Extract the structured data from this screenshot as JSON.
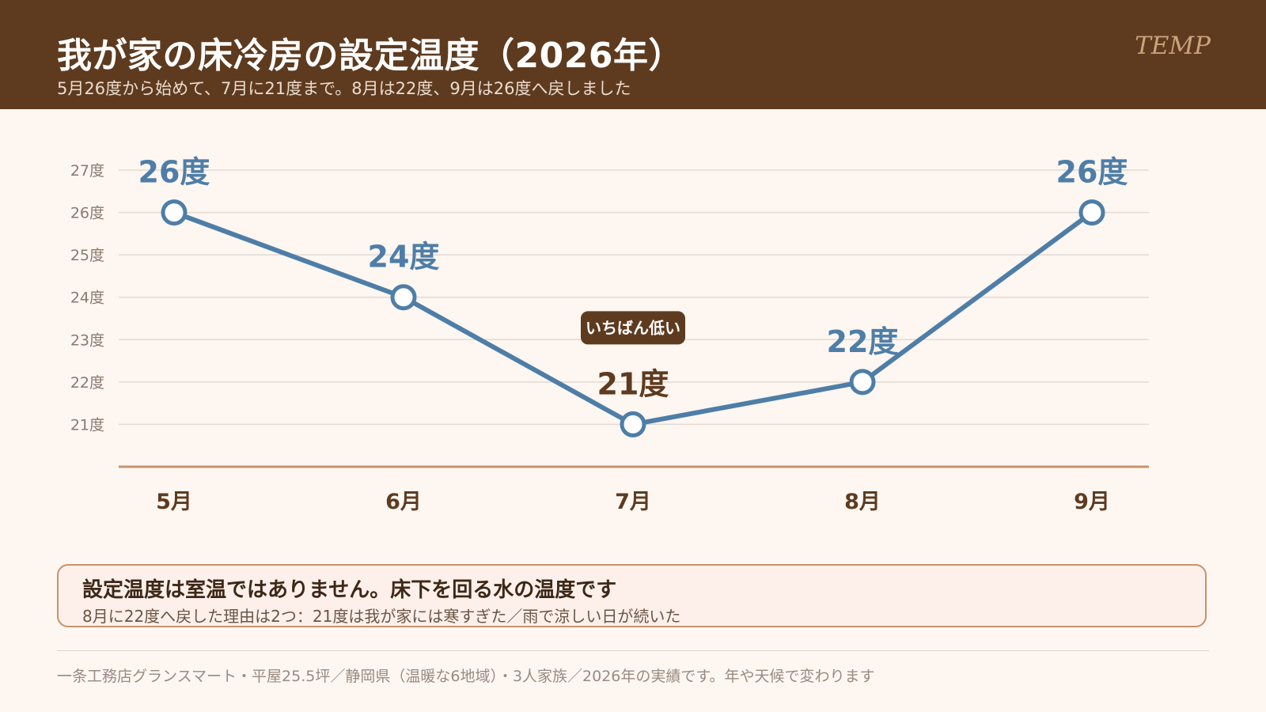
{
  "header": {
    "title": "我が家の床冷房の設定温度（2026年）",
    "subtitle": "5月26度から始めて、7月に21度まで。8月は22度、9月は26度へ戻しました",
    "brand": "TEMP"
  },
  "chart_data": {
    "type": "line",
    "categories": [
      "5月",
      "6月",
      "7月",
      "8月",
      "9月"
    ],
    "series": [
      {
        "values": [
          26,
          24,
          21,
          22,
          26
        ]
      }
    ],
    "data_labels": [
      "26度",
      "24度",
      "21度",
      "22度",
      "26度"
    ],
    "yticks": [
      {
        "value": 21,
        "label": "21度"
      },
      {
        "value": 22,
        "label": "22度"
      },
      {
        "value": 23,
        "label": "23度"
      },
      {
        "value": 24,
        "label": "24度"
      },
      {
        "value": 25,
        "label": "25度"
      },
      {
        "value": 26,
        "label": "26度"
      },
      {
        "value": 27,
        "label": "27度"
      }
    ],
    "ylim": [
      20,
      27
    ],
    "grid": true,
    "annotation": {
      "category": "7月",
      "text": "いちばん低い"
    },
    "title": "",
    "xlabel": "",
    "ylabel": ""
  },
  "colors": {
    "header_bg": "#5e3b1f",
    "line": "#4e7ea7",
    "accent_brown": "#5e3b1f",
    "baseline": "#c5936c"
  },
  "note": {
    "title": "設定温度は室温ではありません。床下を回る水の温度です",
    "body": "8月に22度へ戻した理由は2つ：21度は我が家には寒すぎた／雨で涼しい日が続いた"
  },
  "footer": "一条工務店グランスマート・平屋25.5坪／静岡県（温暖な6地域）・3人家族／2026年の実績です。年や天候で変わります"
}
